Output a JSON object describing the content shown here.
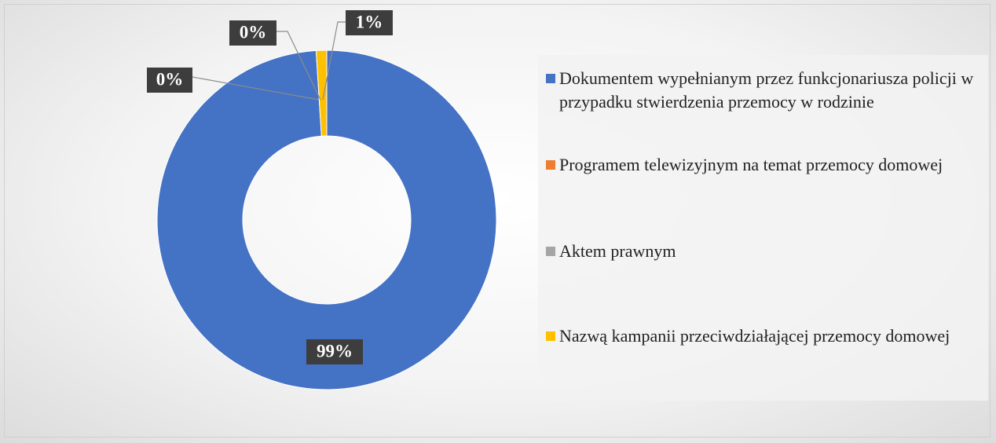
{
  "chart_data": {
    "type": "donut",
    "categories": [
      "Dokumentem wypełnianym przez funkcjonariusza policji w przypadku stwierdzenia przemocy w rodzinie",
      "Programem telewizyjnym na temat przemocy domowej",
      "Aktem prawnym",
      "Nazwą kampanii przeciwdziałającej przemocy domowej"
    ],
    "values": [
      99,
      0,
      0,
      1
    ],
    "value_labels": [
      "99%",
      "0%",
      "0%",
      "1%"
    ],
    "colors": [
      "#4472c4",
      "#ed7d31",
      "#a5a5a5",
      "#ffc000"
    ],
    "legend": "right"
  }
}
